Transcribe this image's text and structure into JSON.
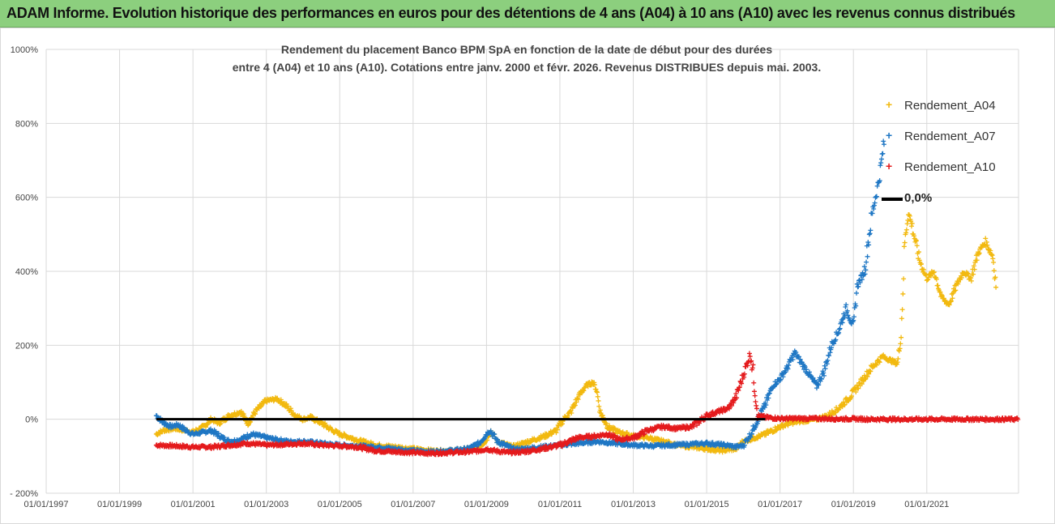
{
  "banner": {
    "title": "ADAM Informe. Evolution historique des performances en euros pour des détentions de 4 ans (A04) à 10 ans (A10) avec les revenus connus distribués"
  },
  "chart_data": {
    "type": "scatter",
    "title_line1": "Rendement du placement Banco BPM SpA en fonction de la date de début pour des durées",
    "title_line2": "entre 4 (A04) et 10 ans (A10). Cotations entre janv. 2000 et févr.  2026. Revenus DISTRIBUES depuis mai. 2003.",
    "y_ticks": [
      "1000%",
      "800%",
      "600%",
      "400%",
      "200%",
      "0%",
      "- 200%"
    ],
    "y_tick_values": [
      1000,
      800,
      600,
      400,
      200,
      0,
      -200
    ],
    "ylim": [
      -200,
      1000
    ],
    "x_ticks": [
      "01/01/1997",
      "01/01/1999",
      "01/01/2001",
      "01/01/2003",
      "01/01/2005",
      "01/01/2007",
      "01/01/2009",
      "01/01/2011",
      "01/01/2013",
      "01/01/2015",
      "01/01/2017",
      "01/01/2019",
      "01/01/2021"
    ],
    "x_tick_years": [
      1997,
      1999,
      2001,
      2003,
      2005,
      2007,
      2009,
      2011,
      2013,
      2015,
      2017,
      2019,
      2021
    ],
    "xlim": [
      1997,
      2023.5
    ],
    "colors": {
      "A04": "#f2b90f",
      "A07": "#1f77c4",
      "A10": "#e41a1c",
      "zero": "#000000"
    },
    "legend": [
      "Rendement_A04",
      "Rendement_A07",
      "Rendement_A10",
      "0,0%"
    ],
    "zero_line": {
      "label": "0,0%",
      "x_start": 2000.0,
      "x_end": 2023.5,
      "y": 0
    },
    "series": [
      {
        "name": "Rendement_A04",
        "key": "A04",
        "points": [
          [
            2000.0,
            -40
          ],
          [
            2000.2,
            -30
          ],
          [
            2000.5,
            -25
          ],
          [
            2000.8,
            -30
          ],
          [
            2001.0,
            -35
          ],
          [
            2001.3,
            -20
          ],
          [
            2001.5,
            0
          ],
          [
            2001.7,
            -10
          ],
          [
            2002.0,
            10
          ],
          [
            2002.3,
            20
          ],
          [
            2002.5,
            -10
          ],
          [
            2002.7,
            20
          ],
          [
            2003.0,
            50
          ],
          [
            2003.3,
            55
          ],
          [
            2003.5,
            40
          ],
          [
            2003.8,
            10
          ],
          [
            2004.0,
            0
          ],
          [
            2004.2,
            5
          ],
          [
            2004.5,
            -10
          ],
          [
            2004.8,
            -30
          ],
          [
            2005.0,
            -40
          ],
          [
            2005.3,
            -50
          ],
          [
            2005.6,
            -60
          ],
          [
            2006.0,
            -70
          ],
          [
            2006.5,
            -75
          ],
          [
            2007.0,
            -80
          ],
          [
            2007.5,
            -85
          ],
          [
            2008.0,
            -85
          ],
          [
            2008.5,
            -80
          ],
          [
            2008.8,
            -75
          ],
          [
            2009.0,
            -55
          ],
          [
            2009.1,
            -30
          ],
          [
            2009.3,
            -60
          ],
          [
            2009.7,
            -75
          ],
          [
            2010.0,
            -65
          ],
          [
            2010.3,
            -55
          ],
          [
            2010.6,
            -45
          ],
          [
            2010.9,
            -30
          ],
          [
            2011.1,
            0
          ],
          [
            2011.3,
            20
          ],
          [
            2011.5,
            60
          ],
          [
            2011.7,
            90
          ],
          [
            2011.9,
            100
          ],
          [
            2012.0,
            80
          ],
          [
            2012.1,
            20
          ],
          [
            2012.3,
            -20
          ],
          [
            2012.6,
            -35
          ],
          [
            2013.0,
            -45
          ],
          [
            2013.4,
            -50
          ],
          [
            2013.8,
            -60
          ],
          [
            2014.2,
            -70
          ],
          [
            2014.6,
            -75
          ],
          [
            2015.0,
            -80
          ],
          [
            2015.4,
            -85
          ],
          [
            2015.8,
            -80
          ],
          [
            2016.0,
            -60
          ],
          [
            2016.3,
            -50
          ],
          [
            2016.6,
            -40
          ],
          [
            2017.0,
            -20
          ],
          [
            2017.3,
            -10
          ],
          [
            2017.6,
            -5
          ],
          [
            2018.0,
            0
          ],
          [
            2018.3,
            10
          ],
          [
            2018.6,
            30
          ],
          [
            2018.9,
            60
          ],
          [
            2019.2,
            100
          ],
          [
            2019.5,
            140
          ],
          [
            2019.8,
            170
          ],
          [
            2020.0,
            160
          ],
          [
            2020.2,
            150
          ],
          [
            2020.3,
            230
          ],
          [
            2020.4,
            480
          ],
          [
            2020.5,
            560
          ],
          [
            2020.6,
            520
          ],
          [
            2020.8,
            430
          ],
          [
            2021.0,
            380
          ],
          [
            2021.2,
            400
          ],
          [
            2021.4,
            330
          ],
          [
            2021.6,
            310
          ],
          [
            2021.8,
            360
          ],
          [
            2022.0,
            400
          ],
          [
            2022.2,
            380
          ],
          [
            2022.4,
            450
          ],
          [
            2022.6,
            480
          ],
          [
            2022.8,
            440
          ],
          [
            2022.9,
            350
          ]
        ]
      },
      {
        "name": "Rendement_A07",
        "key": "A07",
        "points": [
          [
            2000.0,
            10
          ],
          [
            2000.2,
            -10
          ],
          [
            2000.4,
            -20
          ],
          [
            2000.6,
            -15
          ],
          [
            2000.8,
            -30
          ],
          [
            2001.0,
            -40
          ],
          [
            2001.3,
            -35
          ],
          [
            2001.5,
            -30
          ],
          [
            2001.8,
            -50
          ],
          [
            2002.0,
            -60
          ],
          [
            2002.3,
            -55
          ],
          [
            2002.6,
            -40
          ],
          [
            2003.0,
            -50
          ],
          [
            2003.3,
            -55
          ],
          [
            2003.6,
            -60
          ],
          [
            2004.0,
            -60
          ],
          [
            2004.5,
            -65
          ],
          [
            2005.0,
            -70
          ],
          [
            2005.5,
            -72
          ],
          [
            2006.0,
            -75
          ],
          [
            2006.5,
            -80
          ],
          [
            2007.0,
            -85
          ],
          [
            2007.5,
            -88
          ],
          [
            2008.0,
            -85
          ],
          [
            2008.5,
            -80
          ],
          [
            2008.8,
            -65
          ],
          [
            2009.0,
            -40
          ],
          [
            2009.1,
            -30
          ],
          [
            2009.3,
            -60
          ],
          [
            2009.7,
            -80
          ],
          [
            2010.0,
            -80
          ],
          [
            2010.5,
            -75
          ],
          [
            2011.0,
            -70
          ],
          [
            2011.5,
            -65
          ],
          [
            2012.0,
            -60
          ],
          [
            2012.5,
            -65
          ],
          [
            2013.0,
            -70
          ],
          [
            2013.5,
            -72
          ],
          [
            2014.0,
            -70
          ],
          [
            2014.5,
            -68
          ],
          [
            2015.0,
            -65
          ],
          [
            2015.5,
            -70
          ],
          [
            2015.8,
            -75
          ],
          [
            2016.0,
            -70
          ],
          [
            2016.2,
            -40
          ],
          [
            2016.4,
            0
          ],
          [
            2016.6,
            40
          ],
          [
            2016.8,
            90
          ],
          [
            2017.0,
            110
          ],
          [
            2017.2,
            140
          ],
          [
            2017.4,
            180
          ],
          [
            2017.6,
            150
          ],
          [
            2017.8,
            120
          ],
          [
            2018.0,
            90
          ],
          [
            2018.2,
            130
          ],
          [
            2018.4,
            200
          ],
          [
            2018.6,
            240
          ],
          [
            2018.8,
            300
          ],
          [
            2019.0,
            250
          ],
          [
            2019.1,
            360
          ],
          [
            2019.3,
            400
          ],
          [
            2019.5,
            550
          ],
          [
            2019.7,
            650
          ],
          [
            2019.85,
            760
          ]
        ]
      },
      {
        "name": "Rendement_A10",
        "key": "A10",
        "points": [
          [
            2000.0,
            -70
          ],
          [
            2000.5,
            -72
          ],
          [
            2001.0,
            -75
          ],
          [
            2001.5,
            -75
          ],
          [
            2002.0,
            -70
          ],
          [
            2002.5,
            -65
          ],
          [
            2003.0,
            -70
          ],
          [
            2003.5,
            -68
          ],
          [
            2004.0,
            -65
          ],
          [
            2004.5,
            -70
          ],
          [
            2005.0,
            -72
          ],
          [
            2005.5,
            -75
          ],
          [
            2006.0,
            -85
          ],
          [
            2006.5,
            -88
          ],
          [
            2007.0,
            -90
          ],
          [
            2007.5,
            -92
          ],
          [
            2008.0,
            -90
          ],
          [
            2008.5,
            -88
          ],
          [
            2008.8,
            -85
          ],
          [
            2009.0,
            -80
          ],
          [
            2009.2,
            -85
          ],
          [
            2009.6,
            -90
          ],
          [
            2010.0,
            -88
          ],
          [
            2010.5,
            -80
          ],
          [
            2011.0,
            -70
          ],
          [
            2011.5,
            -50
          ],
          [
            2012.0,
            -45
          ],
          [
            2012.3,
            -40
          ],
          [
            2012.6,
            -55
          ],
          [
            2013.0,
            -50
          ],
          [
            2013.4,
            -30
          ],
          [
            2013.8,
            -20
          ],
          [
            2014.2,
            -25
          ],
          [
            2014.6,
            -20
          ],
          [
            2015.0,
            10
          ],
          [
            2015.3,
            20
          ],
          [
            2015.6,
            30
          ],
          [
            2015.8,
            60
          ],
          [
            2016.0,
            120
          ],
          [
            2016.2,
            180
          ],
          [
            2016.4,
            10
          ],
          [
            2016.6,
            5
          ],
          [
            2017.0,
            2
          ],
          [
            2017.5,
            2
          ],
          [
            2018.0,
            2
          ],
          [
            2018.5,
            1
          ],
          [
            2019.0,
            1
          ],
          [
            2019.5,
            0
          ],
          [
            2020.0,
            0
          ],
          [
            2020.5,
            0
          ],
          [
            2021.0,
            0
          ],
          [
            2021.5,
            0
          ],
          [
            2022.0,
            0
          ],
          [
            2022.5,
            0
          ],
          [
            2023.0,
            0
          ],
          [
            2023.5,
            0
          ]
        ]
      }
    ]
  }
}
